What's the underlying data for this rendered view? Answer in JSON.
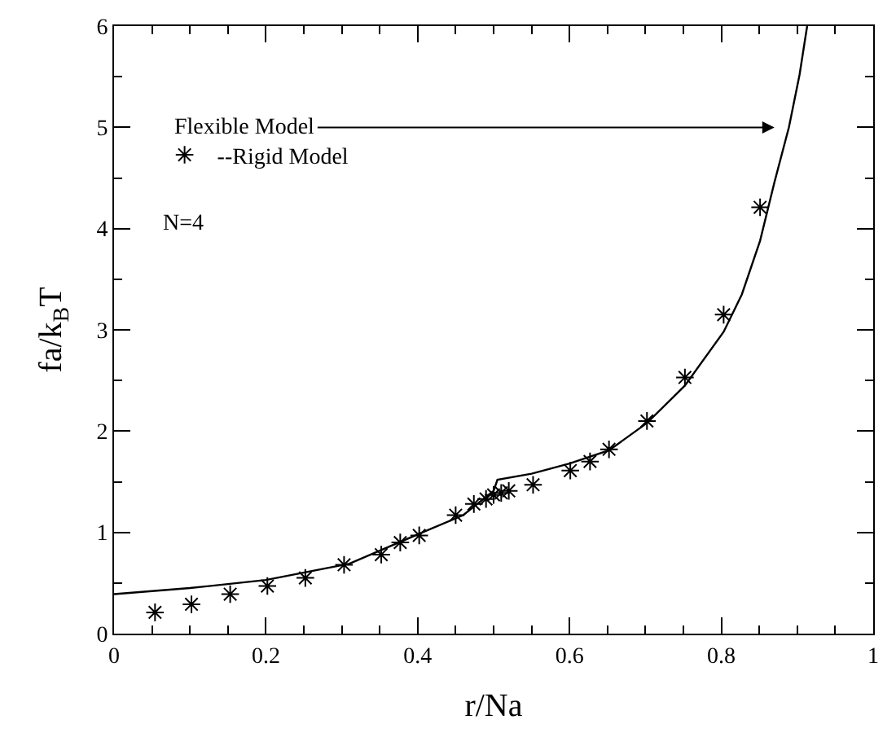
{
  "chart_data": {
    "type": "line",
    "xlabel": "r/Na",
    "ylabel": "fa/k$_{B}$T",
    "xlim": [
      0,
      1
    ],
    "ylim": [
      0,
      6
    ],
    "xticks": [
      0,
      0.2,
      0.4,
      0.6,
      0.8,
      1
    ],
    "yticks": [
      0,
      1,
      2,
      3,
      4,
      5,
      6
    ],
    "grid": false,
    "legend": "top left",
    "series": [
      {
        "color": "#000000",
        "marker": "none",
        "line_style": "solid",
        "x": [
          0,
          0.1,
          0.2,
          0.31,
          0.4,
          0.46,
          0.5,
          0.505,
          0.55,
          0.6,
          0.652,
          0.702,
          0.752,
          0.803,
          0.827,
          0.851,
          0.87,
          0.889,
          0.903,
          0.913
        ],
        "values": [
          0.39,
          0.45,
          0.53,
          0.69,
          0.98,
          1.17,
          1.41,
          1.52,
          1.58,
          1.68,
          1.81,
          2.08,
          2.45,
          2.98,
          3.35,
          3.88,
          4.46,
          5.0,
          5.52,
          6.0
        ]
      },
      {
        "type": "scatter",
        "name": "--Rigid Model",
        "color": "#000000",
        "marker": "cross",
        "x": [
          0.054,
          0.102,
          0.153,
          0.202,
          0.252,
          0.303,
          0.352,
          0.377,
          0.402,
          0.45,
          0.474,
          0.49,
          0.5,
          0.51,
          0.52,
          0.552,
          0.601,
          0.627,
          0.652,
          0.702,
          0.752,
          0.803,
          0.851
        ],
        "values": [
          0.21,
          0.29,
          0.39,
          0.47,
          0.55,
          0.68,
          0.78,
          0.9,
          0.97,
          1.17,
          1.28,
          1.33,
          1.37,
          1.39,
          1.41,
          1.47,
          1.61,
          1.7,
          1.82,
          2.1,
          2.53,
          3.15,
          4.21
        ]
      }
    ],
    "annotations": [
      "Flexible Model",
      "N=4"
    ]
  }
}
